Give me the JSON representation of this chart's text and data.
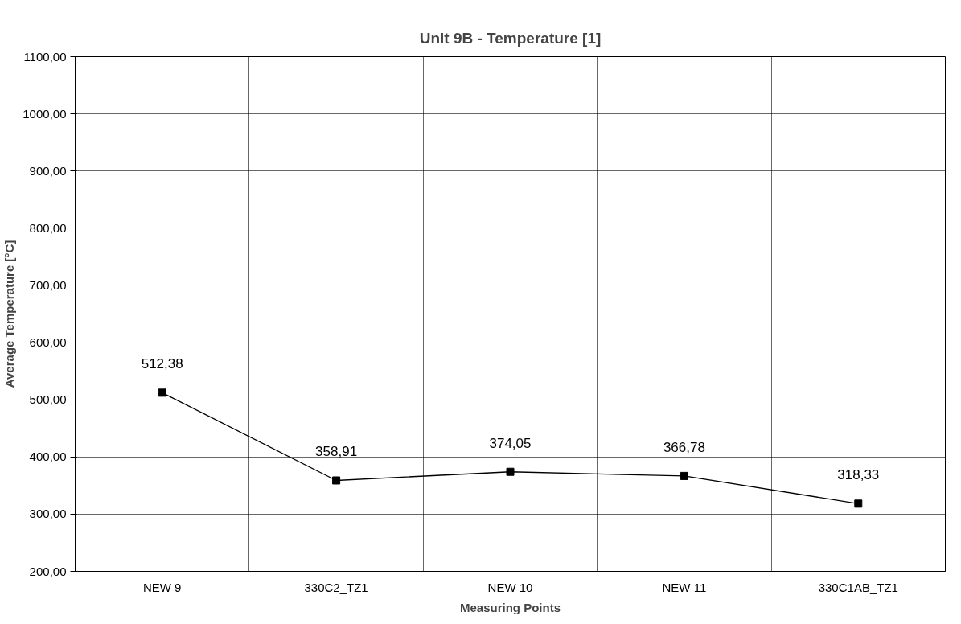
{
  "chart_data": {
    "type": "line",
    "title": "Unit 9B - Temperature [1]",
    "xlabel": "Measuring Points",
    "ylabel": "Average Temperature [°C]",
    "categories": [
      "NEW 9",
      "330C2_TZ1",
      "NEW 10",
      "NEW 11",
      "330C1AB_TZ1"
    ],
    "series": [
      {
        "color": "#000000",
        "values": [
          512.38,
          358.91,
          374.05,
          366.78,
          318.33
        ],
        "value_labels": [
          "512,38",
          "358,91",
          "374,05",
          "366,78",
          "318,33"
        ]
      }
    ],
    "ylim": [
      200,
      1100
    ],
    "yticks": [
      {
        "value": 200,
        "label": "200,00"
      },
      {
        "value": 300,
        "label": "300,00"
      },
      {
        "value": 400,
        "label": "400,00"
      },
      {
        "value": 500,
        "label": "500,00"
      },
      {
        "value": 600,
        "label": "600,00"
      },
      {
        "value": 700,
        "label": "700,00"
      },
      {
        "value": 800,
        "label": "800,00"
      },
      {
        "value": 900,
        "label": "900,00"
      },
      {
        "value": 1000,
        "label": "1000,00"
      },
      {
        "value": 1100,
        "label": "1100,00"
      }
    ],
    "grid": true,
    "marker": "square",
    "line_style": "solid"
  }
}
